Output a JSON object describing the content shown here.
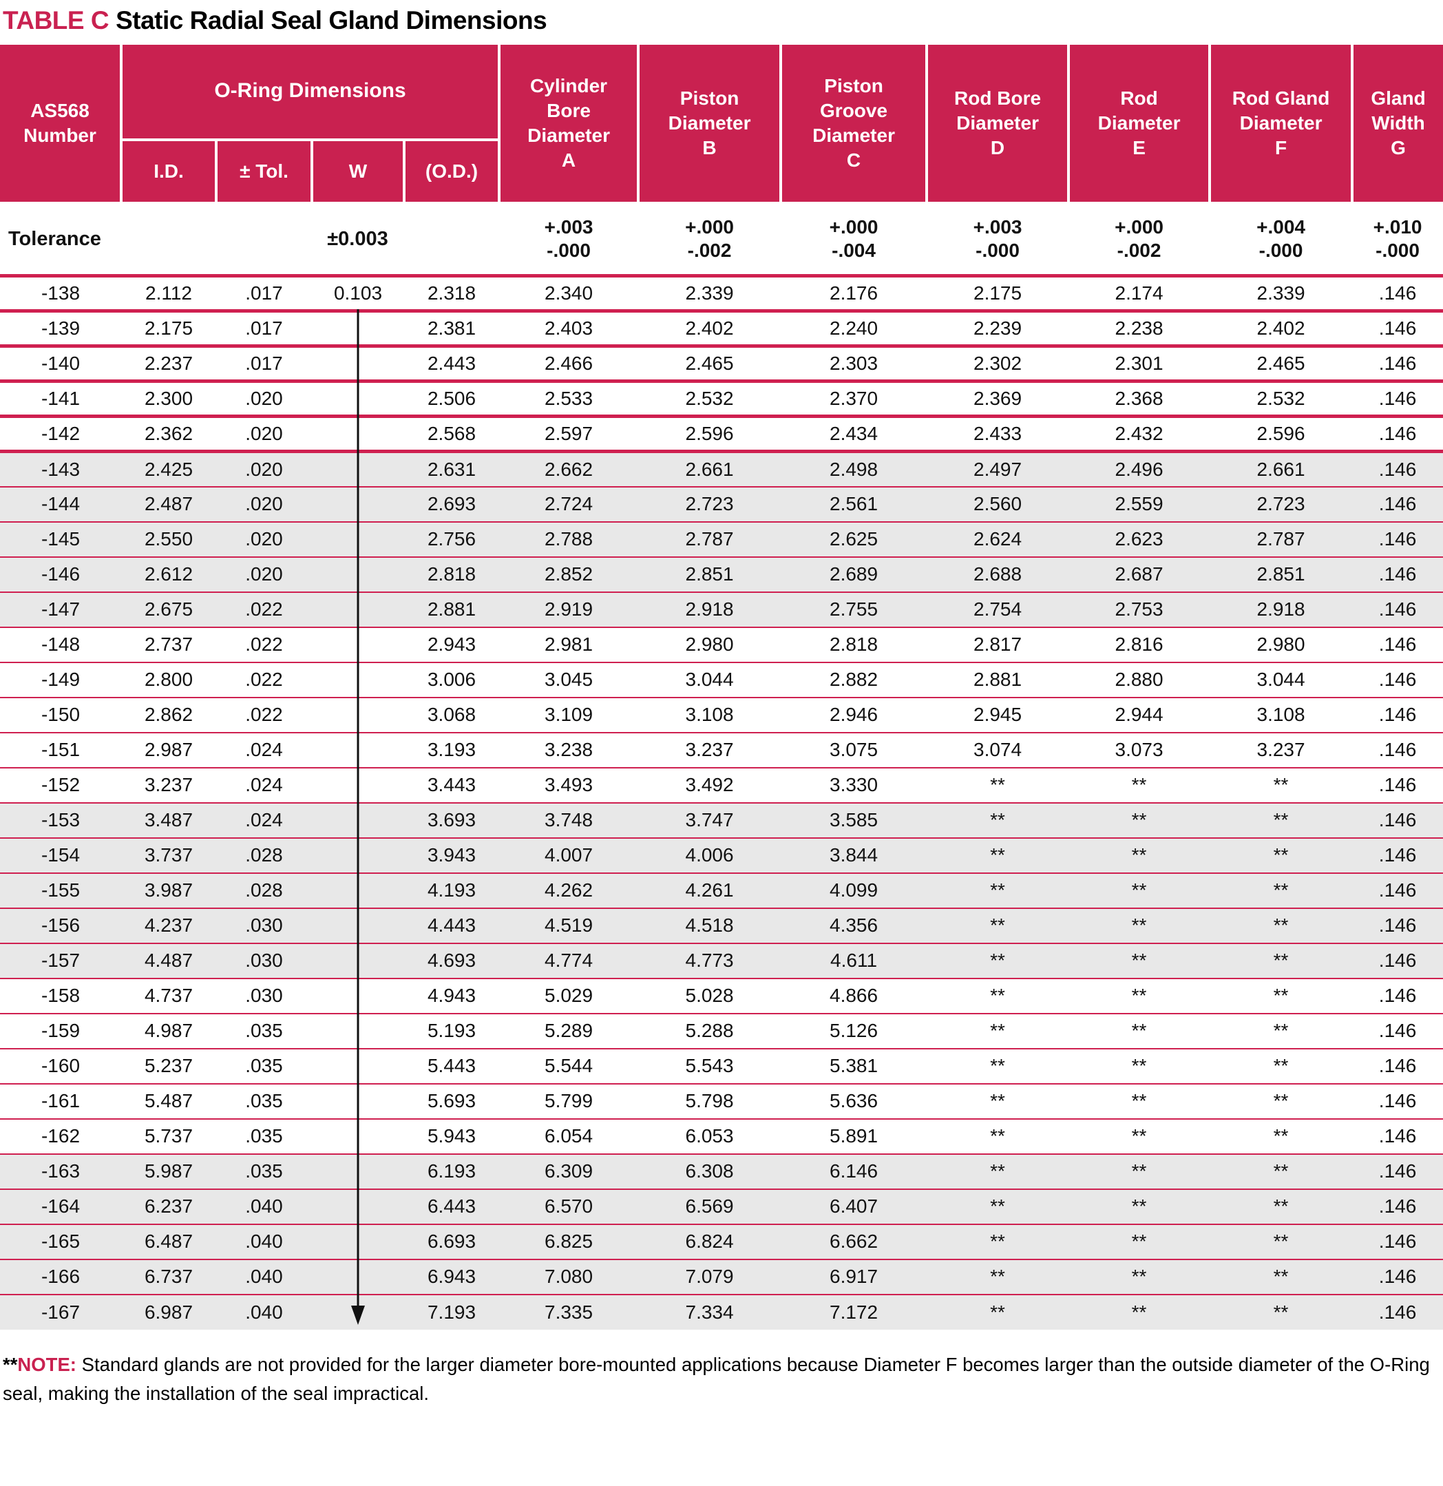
{
  "title": {
    "prefix": "TABLE C",
    "main": "Static Radial Seal Gland Dimensions"
  },
  "colors": {
    "accent_crimson": "#c92150",
    "row_band_gray": "#e8e8e8",
    "header_text": "#ffffff",
    "body_text": "#121212"
  },
  "header": {
    "as568": "AS568\nNumber",
    "oring_group": "O-Ring Dimensions",
    "oring_sub": [
      "I.D.",
      "± Tol.",
      "W",
      "(O.D.)"
    ],
    "columns": [
      "Cylinder\nBore\nDiameter\nA",
      "Piston\nDiameter\nB",
      "Piston\nGroove\nDiameter\nC",
      "Rod Bore\nDiameter\nD",
      "Rod\nDiameter\nE",
      "Rod Gland\nDiameter\nF",
      "Gland\nWidth\nG"
    ]
  },
  "tolerance_row": {
    "label": "Tolerance",
    "oring_tol": "±0.003",
    "values": [
      "+.003\n-.000",
      "+.000\n-.002",
      "+.000\n-.004",
      "+.003\n-.000",
      "+.000\n-.002",
      "+.004\n-.000",
      "+.010\n-.000"
    ]
  },
  "w_marker": {
    "type": "vertical-arrow-line",
    "meaning": "ditto: W = 0.103 for all rows below -138",
    "start_row_index": 1,
    "end_row_index": 29
  },
  "rows": [
    [
      "-138",
      "2.112",
      ".017",
      "0.103",
      "2.318",
      "2.340",
      "2.339",
      "2.176",
      "2.175",
      "2.174",
      "2.339",
      ".146"
    ],
    [
      "-139",
      "2.175",
      ".017",
      "",
      "2.381",
      "2.403",
      "2.402",
      "2.240",
      "2.239",
      "2.238",
      "2.402",
      ".146"
    ],
    [
      "-140",
      "2.237",
      ".017",
      "",
      "2.443",
      "2.466",
      "2.465",
      "2.303",
      "2.302",
      "2.301",
      "2.465",
      ".146"
    ],
    [
      "-141",
      "2.300",
      ".020",
      "",
      "2.506",
      "2.533",
      "2.532",
      "2.370",
      "2.369",
      "2.368",
      "2.532",
      ".146"
    ],
    [
      "-142",
      "2.362",
      ".020",
      "",
      "2.568",
      "2.597",
      "2.596",
      "2.434",
      "2.433",
      "2.432",
      "2.596",
      ".146"
    ],
    [
      "-143",
      "2.425",
      ".020",
      "",
      "2.631",
      "2.662",
      "2.661",
      "2.498",
      "2.497",
      "2.496",
      "2.661",
      ".146"
    ],
    [
      "-144",
      "2.487",
      ".020",
      "",
      "2.693",
      "2.724",
      "2.723",
      "2.561",
      "2.560",
      "2.559",
      "2.723",
      ".146"
    ],
    [
      "-145",
      "2.550",
      ".020",
      "",
      "2.756",
      "2.788",
      "2.787",
      "2.625",
      "2.624",
      "2.623",
      "2.787",
      ".146"
    ],
    [
      "-146",
      "2.612",
      ".020",
      "",
      "2.818",
      "2.852",
      "2.851",
      "2.689",
      "2.688",
      "2.687",
      "2.851",
      ".146"
    ],
    [
      "-147",
      "2.675",
      ".022",
      "",
      "2.881",
      "2.919",
      "2.918",
      "2.755",
      "2.754",
      "2.753",
      "2.918",
      ".146"
    ],
    [
      "-148",
      "2.737",
      ".022",
      "",
      "2.943",
      "2.981",
      "2.980",
      "2.818",
      "2.817",
      "2.816",
      "2.980",
      ".146"
    ],
    [
      "-149",
      "2.800",
      ".022",
      "",
      "3.006",
      "3.045",
      "3.044",
      "2.882",
      "2.881",
      "2.880",
      "3.044",
      ".146"
    ],
    [
      "-150",
      "2.862",
      ".022",
      "",
      "3.068",
      "3.109",
      "3.108",
      "2.946",
      "2.945",
      "2.944",
      "3.108",
      ".146"
    ],
    [
      "-151",
      "2.987",
      ".024",
      "",
      "3.193",
      "3.238",
      "3.237",
      "3.075",
      "3.074",
      "3.073",
      "3.237",
      ".146"
    ],
    [
      "-152",
      "3.237",
      ".024",
      "",
      "3.443",
      "3.493",
      "3.492",
      "3.330",
      "**",
      "**",
      "**",
      ".146"
    ],
    [
      "-153",
      "3.487",
      ".024",
      "",
      "3.693",
      "3.748",
      "3.747",
      "3.585",
      "**",
      "**",
      "**",
      ".146"
    ],
    [
      "-154",
      "3.737",
      ".028",
      "",
      "3.943",
      "4.007",
      "4.006",
      "3.844",
      "**",
      "**",
      "**",
      ".146"
    ],
    [
      "-155",
      "3.987",
      ".028",
      "",
      "4.193",
      "4.262",
      "4.261",
      "4.099",
      "**",
      "**",
      "**",
      ".146"
    ],
    [
      "-156",
      "4.237",
      ".030",
      "",
      "4.443",
      "4.519",
      "4.518",
      "4.356",
      "**",
      "**",
      "**",
      ".146"
    ],
    [
      "-157",
      "4.487",
      ".030",
      "",
      "4.693",
      "4.774",
      "4.773",
      "4.611",
      "**",
      "**",
      "**",
      ".146"
    ],
    [
      "-158",
      "4.737",
      ".030",
      "",
      "4.943",
      "5.029",
      "5.028",
      "4.866",
      "**",
      "**",
      "**",
      ".146"
    ],
    [
      "-159",
      "4.987",
      ".035",
      "",
      "5.193",
      "5.289",
      "5.288",
      "5.126",
      "**",
      "**",
      "**",
      ".146"
    ],
    [
      "-160",
      "5.237",
      ".035",
      "",
      "5.443",
      "5.544",
      "5.543",
      "5.381",
      "**",
      "**",
      "**",
      ".146"
    ],
    [
      "-161",
      "5.487",
      ".035",
      "",
      "5.693",
      "5.799",
      "5.798",
      "5.636",
      "**",
      "**",
      "**",
      ".146"
    ],
    [
      "-162",
      "5.737",
      ".035",
      "",
      "5.943",
      "6.054",
      "6.053",
      "5.891",
      "**",
      "**",
      "**",
      ".146"
    ],
    [
      "-163",
      "5.987",
      ".035",
      "",
      "6.193",
      "6.309",
      "6.308",
      "6.146",
      "**",
      "**",
      "**",
      ".146"
    ],
    [
      "-164",
      "6.237",
      ".040",
      "",
      "6.443",
      "6.570",
      "6.569",
      "6.407",
      "**",
      "**",
      "**",
      ".146"
    ],
    [
      "-165",
      "6.487",
      ".040",
      "",
      "6.693",
      "6.825",
      "6.824",
      "6.662",
      "**",
      "**",
      "**",
      ".146"
    ],
    [
      "-166",
      "6.737",
      ".040",
      "",
      "6.943",
      "7.080",
      "7.079",
      "6.917",
      "**",
      "**",
      "**",
      ".146"
    ],
    [
      "-167",
      "6.987",
      ".040",
      "",
      "7.193",
      "7.335",
      "7.334",
      "7.172",
      "**",
      "**",
      "**",
      ".146"
    ]
  ],
  "note": {
    "stars": "**",
    "label": "NOTE:",
    "body": " Standard glands are not provided for the larger diameter bore-mounted applications because Diameter F becomes larger than the outside diameter of the O-Ring seal, making the installation of the seal impractical."
  }
}
